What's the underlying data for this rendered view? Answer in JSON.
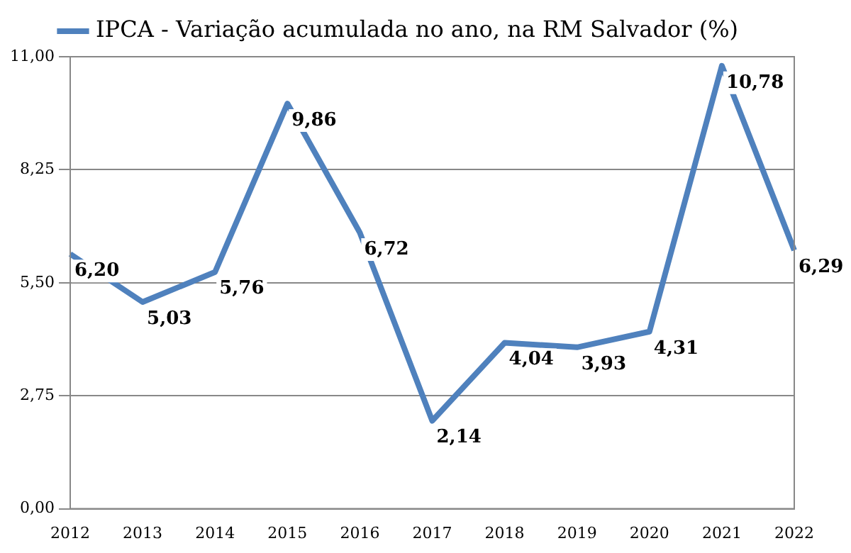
{
  "chart_data": {
    "type": "line",
    "categories": [
      "2012",
      "2013",
      "2014",
      "2015",
      "2016",
      "2017",
      "2018",
      "2019",
      "2020",
      "2021",
      "2022"
    ],
    "series": [
      {
        "name": "IPCA - Variação acumulada no ano, na RM Salvador (%)",
        "color": "#4f81bd",
        "values": [
          6.2,
          5.03,
          5.76,
          9.86,
          6.72,
          2.14,
          4.04,
          3.93,
          4.31,
          10.78,
          6.29
        ],
        "value_labels": [
          "6,20",
          "5,03",
          "5,76",
          "9,86",
          "6,72",
          "2,14",
          "4,04",
          "3,93",
          "4,31",
          "10,78",
          "6,29"
        ]
      }
    ],
    "ylim": [
      0,
      11
    ],
    "yticks": [
      {
        "value": 0,
        "label": "0,00"
      },
      {
        "value": 2.75,
        "label": "2,75"
      },
      {
        "value": 5.5,
        "label": "5,50"
      },
      {
        "value": 8.25,
        "label": "8,25"
      },
      {
        "value": 11,
        "label": "11,00"
      }
    ],
    "grid": "y",
    "legend": "top",
    "marker": "none",
    "line_style": "solid"
  }
}
